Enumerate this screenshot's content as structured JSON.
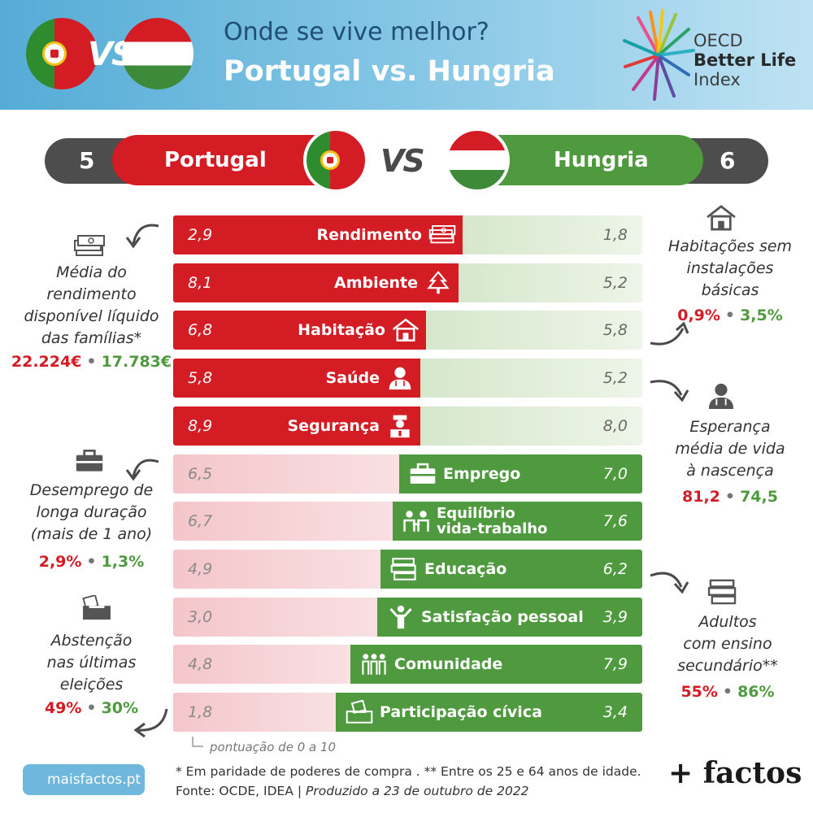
{
  "header": {
    "title_line1": "Onde se vive melhor?",
    "title_line2": "Portugal vs. Hungria",
    "vs": "VS",
    "logo_line1": "OECD",
    "logo_line2": "Better Life",
    "logo_line3": "Index"
  },
  "scoreboard": {
    "pt_score": "5",
    "pt_name": "Portugal",
    "vs": "VS",
    "hu_name": "Hungria",
    "hu_score": "6"
  },
  "chart_data": {
    "type": "bar",
    "subtype": "diverging-split-bar",
    "series": [
      {
        "name": "Portugal",
        "color": "#d41c24"
      },
      {
        "name": "Hungria",
        "color": "#4f9a3f"
      }
    ],
    "scale_note": "pontuação de 0 a 10",
    "ylim": [
      0,
      10
    ],
    "categories": [
      {
        "label": "Rendimento",
        "pt": "2,9",
        "hu": "1,8",
        "pt_value": 2.9,
        "hu_value": 1.8,
        "icon": "money-icon"
      },
      {
        "label": "Ambiente",
        "pt": "8,1",
        "hu": "5,2",
        "pt_value": 8.1,
        "hu_value": 5.2,
        "icon": "tree-icon"
      },
      {
        "label": "Habitação",
        "pt": "6,8",
        "hu": "5,8",
        "pt_value": 6.8,
        "hu_value": 5.8,
        "icon": "house-icon"
      },
      {
        "label": "Saúde",
        "pt": "5,8",
        "hu": "5,2",
        "pt_value": 5.8,
        "hu_value": 5.2,
        "icon": "doctor-icon"
      },
      {
        "label": "Segurança",
        "pt": "8,9",
        "hu": "8,0",
        "pt_value": 8.9,
        "hu_value": 8.0,
        "icon": "police-icon"
      },
      {
        "label": "Emprego",
        "pt": "6,5",
        "hu": "7,0",
        "pt_value": 6.5,
        "hu_value": 7.0,
        "icon": "briefcase-icon"
      },
      {
        "label": "Equilíbrio vida-trabalho",
        "line1": "Equilíbrio",
        "line2": "vida-trabalho",
        "pt": "6,7",
        "hu": "7,6",
        "pt_value": 6.7,
        "hu_value": 7.6,
        "icon": "family-icon"
      },
      {
        "label": "Educação",
        "pt": "4,9",
        "hu": "6,2",
        "pt_value": 4.9,
        "hu_value": 6.2,
        "icon": "books-icon"
      },
      {
        "label": "Satisfação pessoal",
        "pt": "3,0",
        "hu": "3,9",
        "pt_value": 3.0,
        "hu_value": 3.9,
        "icon": "person-cheer-icon"
      },
      {
        "label": "Comunidade",
        "pt": "4,8",
        "hu": "7,9",
        "pt_value": 4.8,
        "hu_value": 7.9,
        "icon": "group-icon"
      },
      {
        "label": "Participação cívica",
        "pt": "1,8",
        "hu": "3,4",
        "pt_value": 1.8,
        "hu_value": 3.4,
        "icon": "ballot-icon"
      }
    ]
  },
  "side_notes": {
    "income": {
      "line1": "Média do",
      "line2": "rendimento",
      "line3": "disponível líquido",
      "line4": "das famílias*",
      "pt": "22.224€",
      "hu": "17.783€"
    },
    "unemployment": {
      "line1": "Desemprego de",
      "line2": "longa duração",
      "line3": "(mais de 1 ano)",
      "pt": "2,9%",
      "hu": "1,3%"
    },
    "abstention": {
      "line1": "Abstenção",
      "line2": "nas últimas",
      "line3": "eleições",
      "pt": "49%",
      "hu": "30%"
    },
    "housing": {
      "line1": "Habitações sem",
      "line2": "instalações",
      "line3": "básicas",
      "pt": "0,9%",
      "hu": "3,5%"
    },
    "life": {
      "line1": "Esperança",
      "line2": "média de vida",
      "line3": "à nascença",
      "pt": "81,2",
      "hu": "74,5"
    },
    "education": {
      "line1": "Adultos",
      "line2": "com ensino",
      "line3": "secundário**",
      "pt": "55%",
      "hu": "86%"
    },
    "separator": "•"
  },
  "footer": {
    "scale_note": "pontuação de 0 a 10",
    "footnote": "* Em paridade de poderes de compra . ** Entre os 25 e 64 anos de idade.",
    "source_label": "Fonte: OCDE, IDEA | ",
    "produced": "Produzido a 23 de outubro de 2022",
    "site": "maisfactos.pt",
    "brand": "+ factos"
  },
  "colors": {
    "portugal": "#d41c24",
    "hungary": "#4f9a3f",
    "header": "#55acd6"
  }
}
